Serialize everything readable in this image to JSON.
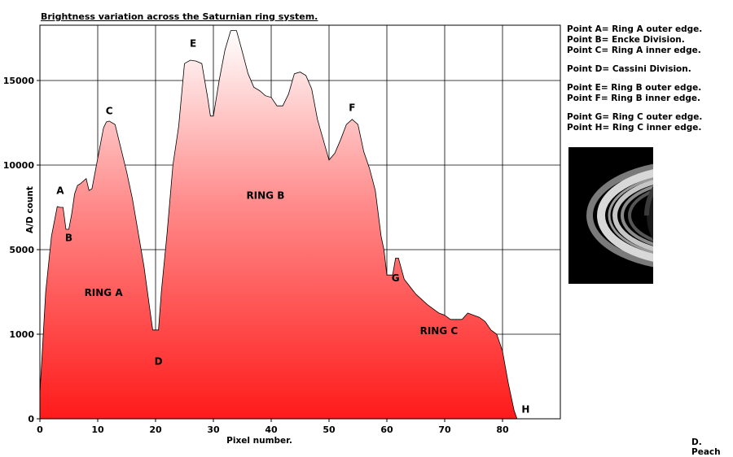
{
  "title": "Brightness variation across the Saturnian ring system.",
  "legend": [
    "Point A= Ring A outer edge.",
    "Point B= Encke Division.",
    "Point C= Ring A inner edge.",
    "Point D= Cassini Division.",
    "Point E= Ring B outer edge.",
    "Point F= Ring B inner edge.",
    "Point G= Ring C outer edge.",
    "Point H= Ring C inner edge."
  ],
  "credit": "D. Peach",
  "chart_data": {
    "type": "area",
    "title": "Brightness variation across the Saturnian ring system.",
    "xlabel": "Pixel number.",
    "ylabel": "A/D count",
    "xlim": [
      0,
      90
    ],
    "x_ticks": [
      "0",
      "10",
      "20",
      "30",
      "40",
      "50",
      "60",
      "70",
      "80"
    ],
    "y_ticks": [
      "0",
      "1000",
      "5000",
      "10000",
      "15000"
    ],
    "y_scale": "non-linear (ticks equally spaced)",
    "grid": true,
    "fill": "red-to-white vertical gradient",
    "colors": {
      "fill_bottom": "#ff1a1a",
      "fill_top": "#ffffff",
      "outline": "#000000",
      "grid": "#000000"
    },
    "series": [
      {
        "x": [
          0,
          1,
          2,
          3,
          3.5,
          4,
          4.5,
          5,
          5.5,
          6,
          6.5,
          7,
          8,
          8.5,
          9,
          10,
          11,
          11.5,
          12,
          13,
          14,
          15,
          16,
          17,
          18,
          19,
          19.5,
          20.5,
          21,
          22,
          23,
          24,
          25,
          26,
          27,
          28,
          29,
          29.5,
          30,
          31,
          32,
          33,
          34,
          35,
          36,
          37,
          38,
          39,
          40,
          41,
          42,
          43,
          44,
          45,
          46,
          47,
          48,
          49,
          50,
          51,
          52,
          53,
          54,
          55,
          56,
          57,
          58,
          59,
          59.5,
          60,
          61,
          61.5,
          62,
          63,
          65,
          67,
          69,
          70,
          71,
          72,
          73,
          74,
          75,
          76,
          77,
          78,
          79,
          80,
          81,
          82,
          82.5
        ],
        "y": [
          300,
          3000,
          5800,
          7550,
          7500,
          7500,
          6200,
          6200,
          7100,
          8300,
          8800,
          8900,
          9200,
          8500,
          8600,
          10400,
          12200,
          12550,
          12600,
          12400,
          11000,
          9600,
          8000,
          6000,
          4200,
          2200,
          1200,
          1200,
          3000,
          6000,
          10000,
          12300,
          16000,
          16200,
          16150,
          16000,
          14000,
          12900,
          12900,
          15000,
          16800,
          17950,
          17950,
          16700,
          15400,
          14600,
          14400,
          14100,
          14000,
          13500,
          13500,
          14200,
          15400,
          15500,
          15300,
          14500,
          12700,
          11500,
          10300,
          10700,
          11500,
          12400,
          12700,
          12400,
          10800,
          9800,
          8500,
          5800,
          5000,
          3800,
          3800,
          4600,
          4600,
          3600,
          2900,
          2400,
          2000,
          1900,
          1700,
          1700,
          1700,
          2000,
          1900,
          1800,
          1600,
          1200,
          1000,
          800,
          420,
          100,
          0
        ]
      }
    ],
    "annotations": [
      {
        "text": "A",
        "x": 3.5,
        "y": 8300
      },
      {
        "text": "B",
        "x": 5,
        "y": 5500
      },
      {
        "text": "C",
        "x": 12,
        "y": 13000
      },
      {
        "text": "D",
        "x": 20.5,
        "y": 640
      },
      {
        "text": "E",
        "x": 26.5,
        "y": 17000
      },
      {
        "text": "F",
        "x": 54,
        "y": 13200
      },
      {
        "text": "G",
        "x": 61.5,
        "y": 3500
      },
      {
        "text": "H",
        "x": 84,
        "y": 70
      },
      {
        "text": "RING A",
        "x": 11,
        "y": 2800
      },
      {
        "text": "RING B",
        "x": 39,
        "y": 8000
      },
      {
        "text": "RING C",
        "x": 69,
        "y": 1000
      }
    ]
  }
}
